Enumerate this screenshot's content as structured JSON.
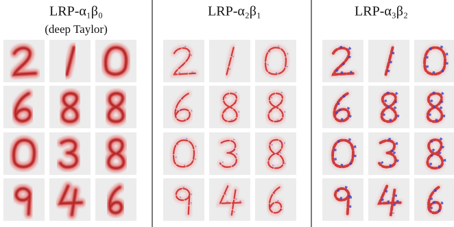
{
  "panels": [
    {
      "title": "LRP-α₁β₀",
      "subtitle": "(deep Taylor)"
    },
    {
      "title": "LRP-α₂β₁"
    },
    {
      "title": "LRP-α₃β₂"
    }
  ]
}
